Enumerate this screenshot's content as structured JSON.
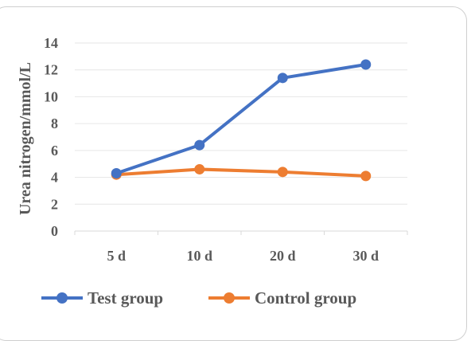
{
  "chart_data": {
    "type": "line",
    "categories": [
      "5 d",
      "10 d",
      "20 d",
      "30 d"
    ],
    "series": [
      {
        "name": "Test group",
        "color": "#4472C4",
        "values": [
          4.3,
          6.4,
          11.4,
          12.4
        ]
      },
      {
        "name": "Control group",
        "color": "#ED7D31",
        "values": [
          4.2,
          4.6,
          4.4,
          4.1
        ]
      }
    ],
    "title": "",
    "xlabel": "",
    "ylabel": "Urea nitrogen/mmol/L",
    "ylim": [
      0,
      14
    ],
    "yticks": [
      "0",
      "2",
      "4",
      "6",
      "8",
      "10",
      "12",
      "14"
    ],
    "grid": true,
    "legend_position": "bottom",
    "colors": {
      "axis_text": "#595959",
      "grid": "#e6e6e6"
    }
  }
}
